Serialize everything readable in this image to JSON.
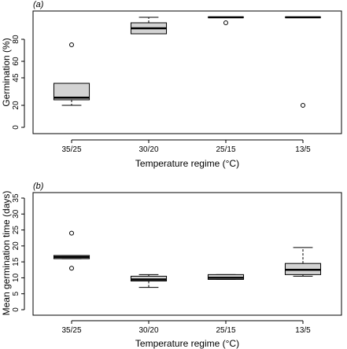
{
  "chart_data": [
    {
      "type": "box",
      "panel_tag": "(a)",
      "xlabel": "Temperature regime (°C)",
      "ylabel": "Germination (%)",
      "categories": [
        "35/25",
        "30/20",
        "25/15",
        "13/5"
      ],
      "y_ticks": [
        0,
        20,
        45,
        60,
        80
      ],
      "ylim": [
        0,
        100
      ],
      "grid": false,
      "boxes": [
        {
          "category": "35/25",
          "whisker_low": 20,
          "q1": 25,
          "median": 27,
          "q3": 40,
          "whisker_high": 40,
          "outliers": [
            75
          ]
        },
        {
          "category": "30/20",
          "whisker_low": 85,
          "q1": 85,
          "median": 90,
          "q3": 95,
          "whisker_high": 100,
          "outliers": []
        },
        {
          "category": "25/15",
          "whisker_low": 100,
          "q1": 100,
          "median": 100,
          "q3": 100,
          "whisker_high": 100,
          "outliers": [
            95
          ]
        },
        {
          "category": "13/5",
          "whisker_low": 100,
          "q1": 100,
          "median": 100,
          "q3": 100,
          "whisker_high": 100,
          "outliers": [
            20
          ]
        }
      ]
    },
    {
      "type": "box",
      "panel_tag": "(b)",
      "xlabel": "Temperature regime (°C)",
      "ylabel": "Mean germination time (days)",
      "categories": [
        "35/25",
        "30/20",
        "25/15",
        "13/5"
      ],
      "y_ticks": [
        0,
        5,
        10,
        15,
        20,
        25,
        30,
        35
      ],
      "ylim": [
        0,
        35
      ],
      "grid": false,
      "boxes": [
        {
          "category": "35/25",
          "whisker_low": 16,
          "q1": 16,
          "median": 16.5,
          "q3": 17,
          "whisker_high": 17,
          "outliers": [
            13,
            24
          ]
        },
        {
          "category": "30/20",
          "whisker_low": 7,
          "q1": 9,
          "median": 9.5,
          "q3": 10.5,
          "whisker_high": 11,
          "outliers": []
        },
        {
          "category": "25/15",
          "whisker_low": 9.5,
          "q1": 9.5,
          "median": 10,
          "q3": 11,
          "whisker_high": 11,
          "outliers": []
        },
        {
          "category": "13/5",
          "whisker_low": 10.5,
          "q1": 11,
          "median": 12.5,
          "q3": 14.5,
          "whisker_high": 19.5,
          "outliers": []
        }
      ]
    }
  ]
}
